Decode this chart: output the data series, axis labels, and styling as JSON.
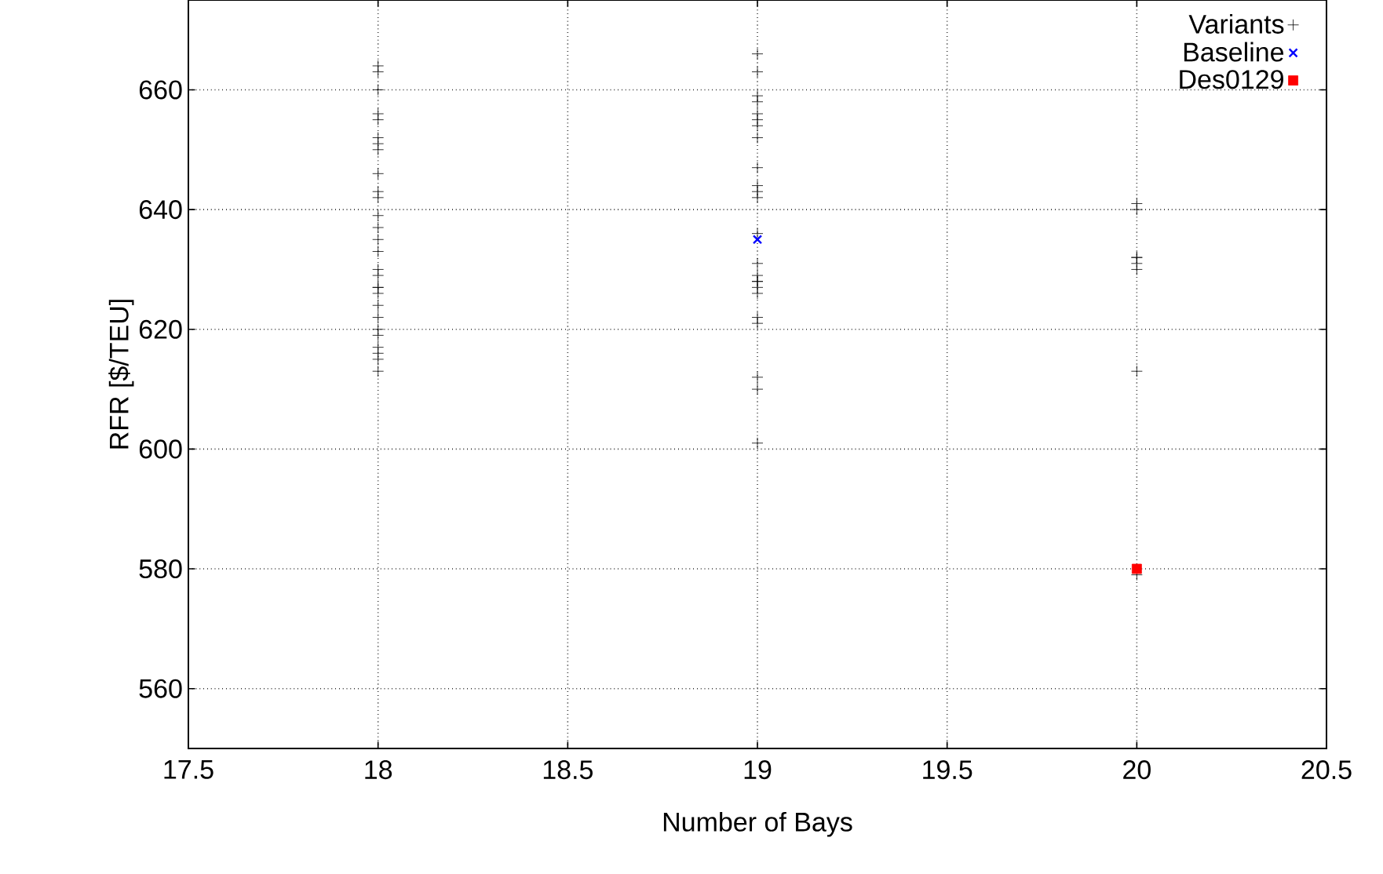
{
  "chart_data": {
    "type": "scatter",
    "xlabel": "Number of Bays",
    "ylabel": "RFR [$/TEU]",
    "xlim": [
      17.5,
      20.5
    ],
    "xticks": [
      17.5,
      18,
      18.5,
      19,
      19.5,
      20,
      20.5
    ],
    "ylim": [
      550,
      675
    ],
    "yticks": [
      560,
      580,
      600,
      620,
      640,
      660
    ],
    "grid": true,
    "legend": "top right",
    "series": [
      {
        "name": "Variants",
        "color": "#000000",
        "marker": "plus",
        "x": [
          18,
          18,
          18,
          18,
          18,
          18,
          18,
          18,
          18,
          18,
          18,
          18,
          18,
          18,
          18,
          18,
          18,
          18,
          18,
          18,
          18,
          18,
          18,
          18,
          18,
          18,
          18,
          18,
          19,
          19,
          19,
          19,
          19,
          19,
          19,
          19,
          19,
          19,
          19,
          19,
          19,
          19,
          19,
          19,
          19,
          19,
          19,
          19,
          19,
          19,
          19,
          19,
          20,
          20,
          20,
          20,
          20,
          20,
          20,
          20
        ],
        "values": [
          664,
          663,
          660,
          656,
          655,
          652,
          651,
          650,
          646,
          643,
          642,
          639,
          637,
          635,
          633,
          630,
          629,
          627,
          627,
          626,
          624,
          622,
          620,
          619,
          617,
          616,
          615,
          613,
          666,
          663,
          659,
          658,
          656,
          655,
          654,
          652,
          647,
          644,
          643,
          642,
          636,
          631,
          629,
          628,
          628,
          627,
          626,
          622,
          621,
          612,
          610,
          601,
          641,
          640,
          632,
          632,
          631,
          630,
          613,
          579
        ]
      },
      {
        "name": "Baseline",
        "color": "#0000ff",
        "marker": "cross",
        "x": [
          19
        ],
        "values": [
          635
        ]
      },
      {
        "name": "Des0129",
        "color": "#ff0000",
        "marker": "square",
        "x": [
          20
        ],
        "values": [
          580
        ]
      }
    ]
  }
}
